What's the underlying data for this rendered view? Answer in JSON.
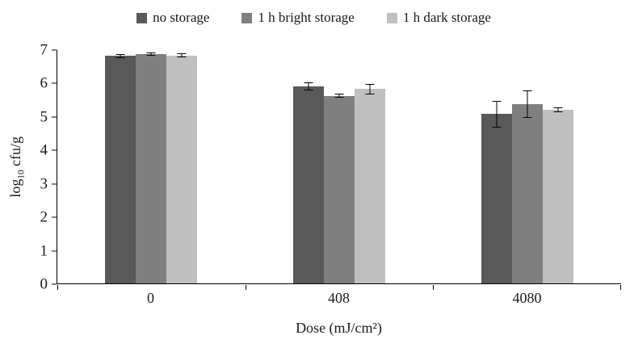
{
  "chart_data": {
    "type": "bar",
    "title": "",
    "categories": [
      "0",
      "408",
      "4080"
    ],
    "series": [
      {
        "name": "no storage",
        "color": "#595959",
        "values": [
          6.82,
          5.9,
          5.08
        ],
        "errors": [
          0.07,
          0.12,
          0.4
        ]
      },
      {
        "name": "1 h bright storage",
        "color": "#7f7f7f",
        "values": [
          6.88,
          5.63,
          5.38
        ],
        "errors": [
          0.04,
          0.06,
          0.42
        ]
      },
      {
        "name": "1 h dark storage",
        "color": "#bfbfbf",
        "values": [
          6.84,
          5.83,
          5.2
        ],
        "errors": [
          0.06,
          0.15,
          0.07
        ]
      }
    ],
    "xlabel": "Dose (mJ/cm²)",
    "ylabel": "log10 cfu/g",
    "ylabel_parts": {
      "pre": "log",
      "sub": "10",
      "post": " cfu/g"
    },
    "ylim": [
      0,
      7
    ],
    "ytick_step": 1,
    "legend_position": "top",
    "grid": false,
    "axis_color": "#000000",
    "error_bar_color": "#000000"
  }
}
